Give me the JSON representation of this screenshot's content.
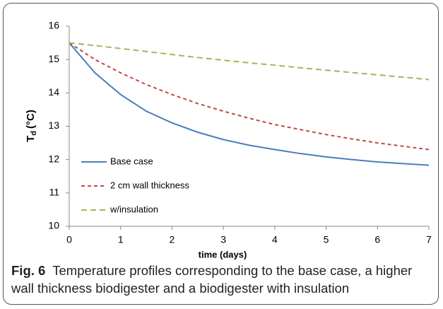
{
  "chart_data": {
    "type": "line",
    "x_label": "time (days)",
    "y_label": {
      "main": "T",
      "sub": "d",
      "unit": "(°C)"
    },
    "x": [
      0,
      0.5,
      1,
      1.5,
      2,
      2.5,
      3,
      3.5,
      4,
      4.5,
      5,
      5.5,
      6,
      6.5,
      7
    ],
    "series": [
      {
        "name": "Base case",
        "color": "#4a7ebb",
        "dash": "none",
        "values": [
          15.5,
          14.6,
          13.95,
          13.45,
          13.1,
          12.82,
          12.6,
          12.43,
          12.3,
          12.18,
          12.08,
          12.0,
          11.93,
          11.88,
          11.83
        ]
      },
      {
        "name": "2 cm wall thickness",
        "color": "#be4b48",
        "dash": "5,4",
        "values": [
          15.5,
          15.0,
          14.6,
          14.25,
          13.95,
          13.68,
          13.45,
          13.24,
          13.05,
          12.9,
          12.75,
          12.62,
          12.5,
          12.4,
          12.3
        ]
      },
      {
        "name": "w/insulation",
        "color": "#9bbb59",
        "dash": "8,5",
        "values": [
          15.5,
          15.42,
          15.33,
          15.24,
          15.15,
          15.06,
          14.98,
          14.9,
          14.83,
          14.75,
          14.68,
          14.61,
          14.54,
          14.47,
          14.4
        ]
      }
    ],
    "xlim": [
      0,
      7
    ],
    "xticks": [
      0,
      1,
      2,
      3,
      4,
      5,
      6,
      7
    ],
    "ylim": [
      10,
      16
    ],
    "yticks": [
      10,
      11,
      12,
      13,
      14,
      15,
      16
    ],
    "grid": false,
    "legend": "lower-left"
  },
  "caption": {
    "label": "Fig. 6",
    "text": "Temperature profiles corresponding to the base case, a higher wall thickness biodigester and a biodigester with insulation"
  }
}
